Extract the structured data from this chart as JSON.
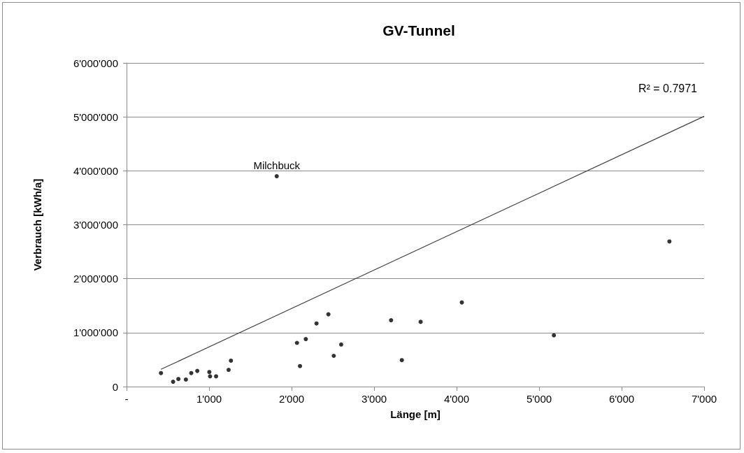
{
  "chart_data": {
    "type": "scatter",
    "title": "GV-Tunnel",
    "xlabel": "Länge [m]",
    "ylabel": "Verbrauch [kWh/a]",
    "xlim": [
      0,
      7000
    ],
    "xticks": [
      {
        "value": 0,
        "label": "-"
      },
      {
        "value": 1000,
        "label": "1'000"
      },
      {
        "value": 2000,
        "label": "2'000"
      },
      {
        "value": 3000,
        "label": "3'000"
      },
      {
        "value": 4000,
        "label": "4'000"
      },
      {
        "value": 5000,
        "label": "5'000"
      },
      {
        "value": 6000,
        "label": "6'000"
      },
      {
        "value": 7000,
        "label": "7'000"
      }
    ],
    "ylim": [
      0,
      6000000
    ],
    "yticks": [
      0,
      {
        "value": 1000000,
        "label": "1'000'000"
      },
      {
        "value": 2000000,
        "label": "2'000'000"
      },
      {
        "value": 3000000,
        "label": "3'000'000"
      },
      {
        "value": 4000000,
        "label": "4'000'000"
      },
      {
        "value": 5000000,
        "label": "5'000'000"
      },
      {
        "value": 6000000,
        "label": "6'000'000"
      }
    ],
    "grid": "y",
    "series": [
      {
        "color": "#000000",
        "marker": "circle",
        "x": [
          417,
          564,
          628,
          719,
          784,
          857,
          1003,
          1012,
          1085,
          1237,
          1265,
          1820,
          2065,
          2102,
          2172,
          2302,
          2446,
          2511,
          2601,
          3206,
          3336,
          3564,
          4063,
          5179,
          6579
        ],
        "values": [
          250000,
          90000,
          140000,
          130000,
          250000,
          290000,
          270000,
          190000,
          190000,
          310000,
          480000,
          3900000,
          810000,
          380000,
          880000,
          1170000,
          1340000,
          570000,
          780000,
          1230000,
          490000,
          1200000,
          1560000,
          950000,
          2690000
        ]
      },
      {
        "type": "line",
        "color": "#404040",
        "marker": "none",
        "x": [
          417,
          7000
        ],
        "values": [
          320000,
          5010000
        ]
      }
    ],
    "annotations": [
      {
        "text": "Milchbuck",
        "x": 1820,
        "y": 3900000
      },
      "R² = 0.7971"
    ]
  }
}
